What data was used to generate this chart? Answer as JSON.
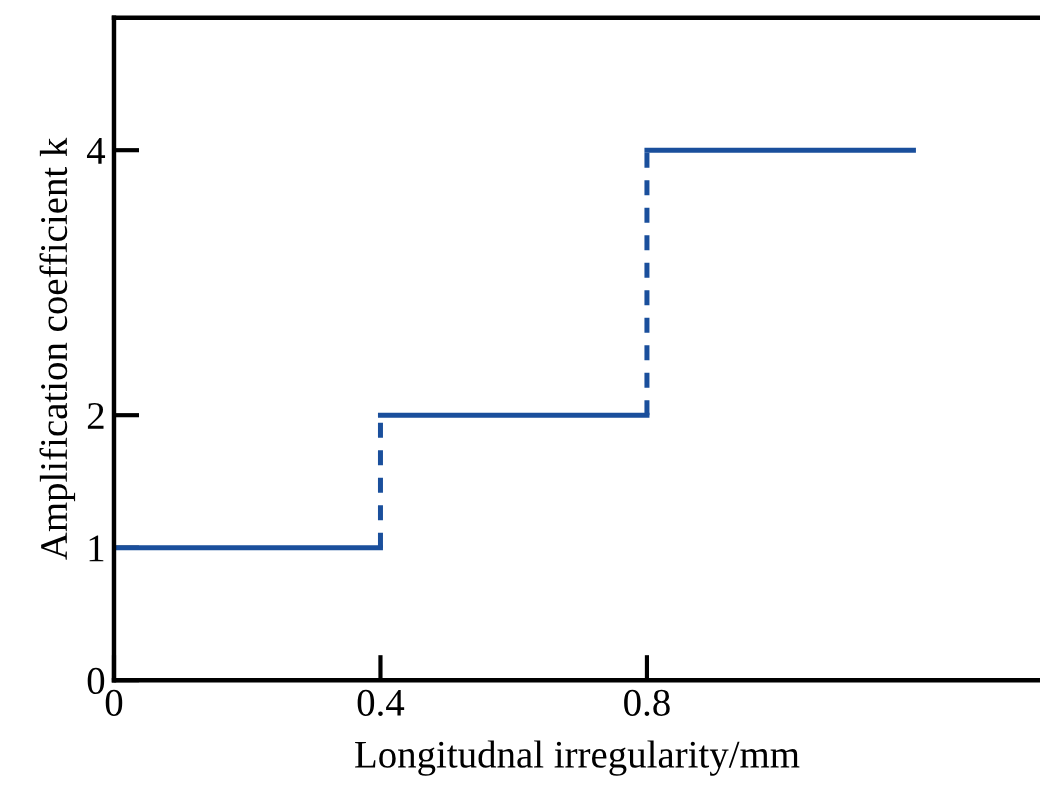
{
  "chart_data": {
    "type": "step",
    "xlabel": "Longitudnal irregularity/mm",
    "ylabel": "Amplification coefficient k",
    "x": [
      0,
      0.4,
      0.8,
      1.2
    ],
    "series": [
      {
        "color": "#1a4f9c",
        "values": [
          1,
          2,
          4,
          4
        ]
      }
    ],
    "xlim": [
      0,
      1.39
    ],
    "ylim": [
      0,
      5
    ],
    "xticks": [
      0,
      0.4,
      0.8
    ],
    "yticks": [
      0,
      1,
      2,
      4
    ],
    "grid": false,
    "legend": false
  }
}
